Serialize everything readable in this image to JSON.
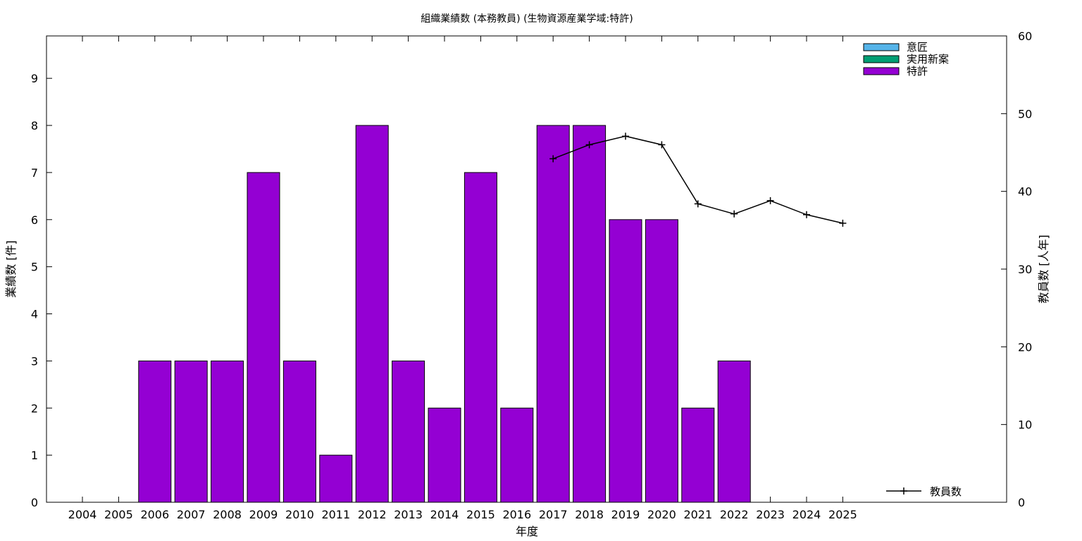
{
  "chart_data": {
    "type": "bar",
    "title": "組織業績数 (本務教員) (生物資源産業学域:特許)",
    "xlabel": "年度",
    "ylabel": "業績数 [件]",
    "y2label": "教員数 [人年]",
    "categories": [
      "2004",
      "2005",
      "2006",
      "2007",
      "2008",
      "2009",
      "2010",
      "2011",
      "2012",
      "2013",
      "2014",
      "2015",
      "2016",
      "2017",
      "2018",
      "2019",
      "2020",
      "2021",
      "2022",
      "2023",
      "2024",
      "2025"
    ],
    "ylim": [
      0,
      9.9
    ],
    "yticks": [
      0,
      1,
      2,
      3,
      4,
      5,
      6,
      7,
      8,
      9
    ],
    "y2lim": [
      0,
      60
    ],
    "y2ticks": [
      0,
      10,
      20,
      30,
      40,
      50,
      60
    ],
    "legend_position": "top-right",
    "series": [
      {
        "name": "意匠",
        "color": "#56b4e9",
        "values": [
          0,
          0,
          0,
          0,
          0,
          0,
          0,
          0,
          0,
          0,
          0,
          0,
          0,
          0,
          0,
          0,
          0,
          0,
          0,
          0,
          0,
          0
        ]
      },
      {
        "name": "実用新案",
        "color": "#009e73",
        "values": [
          0,
          0,
          0,
          0,
          0,
          0,
          0,
          0,
          0,
          0,
          0,
          0,
          0,
          0,
          0,
          0,
          0,
          0,
          0,
          0,
          0,
          0
        ]
      },
      {
        "name": "特許",
        "color": "#9400d3",
        "values": [
          0,
          0,
          3,
          3,
          3,
          7,
          3,
          1,
          8,
          3,
          2,
          7,
          2,
          8,
          8,
          6,
          6,
          2,
          3,
          0,
          0,
          0
        ]
      }
    ],
    "line_series": {
      "name": "教員数",
      "color": "#000000",
      "axis": "y2",
      "x": [
        "2017",
        "2018",
        "2019",
        "2020",
        "2021",
        "2022",
        "2023",
        "2024",
        "2025"
      ],
      "values": [
        44.2,
        46.0,
        47.1,
        46.0,
        38.4,
        37.1,
        38.8,
        37.0,
        35.9
      ]
    }
  }
}
